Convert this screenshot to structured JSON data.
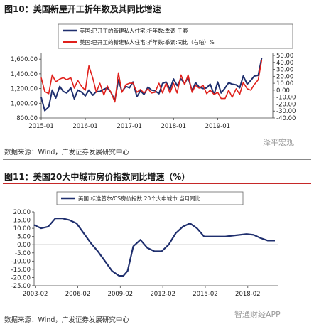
{
  "figures": [
    {
      "title": "图10：美国新屋开工折年数及其同比增速",
      "source": "数据来源：Wind，广发证券发展研究中心",
      "watermark": "泽平宏观"
    },
    {
      "title": "图11：美国20大中城市房价指数同比增速（%）",
      "source": "数据来源：Wind，广发证券发展研究中心",
      "watermark": "智通财经APP"
    }
  ],
  "chart_data": [
    {
      "type": "line",
      "colors": [
        "#1f2f6e",
        "#e0201b"
      ],
      "x_ticks": [
        "2015-01",
        "2016-01",
        "2017-01",
        "2018-01",
        "2019-01"
      ],
      "x_range": [
        2015.0,
        2020.25
      ],
      "y_left": {
        "ticks": [
          "800.00",
          "1,000.00",
          "1,200.00",
          "1,400.00",
          "1,600.00"
        ],
        "range": [
          800,
          1650
        ]
      },
      "y_right": {
        "ticks": [
          "-40.00",
          "-30.00",
          "-20.00",
          "-10.00",
          "0.00",
          "10.00",
          "20.00",
          "30.00",
          "40.00",
          "50.00"
        ],
        "range": [
          -40,
          50
        ]
      },
      "series": [
        {
          "name": "美国:已开工的新建私人住宅:折年数:季调 千套",
          "axis": "left",
          "x": [
            2015.0,
            2015.08,
            2015.17,
            2015.25,
            2015.33,
            2015.42,
            2015.5,
            2015.58,
            2015.67,
            2015.75,
            2015.83,
            2015.92,
            2016.0,
            2016.08,
            2016.17,
            2016.25,
            2016.33,
            2016.42,
            2016.5,
            2016.58,
            2016.67,
            2016.75,
            2016.83,
            2016.92,
            2017.0,
            2017.08,
            2017.17,
            2017.25,
            2017.33,
            2017.42,
            2017.5,
            2017.58,
            2017.67,
            2017.75,
            2017.83,
            2017.92,
            2018.0,
            2018.08,
            2018.17,
            2018.25,
            2018.33,
            2018.42,
            2018.5,
            2018.58,
            2018.67,
            2018.75,
            2018.83,
            2018.92,
            2019.0,
            2019.08,
            2019.17,
            2019.25,
            2019.33,
            2019.42,
            2019.5,
            2019.58,
            2019.67,
            2019.75,
            2019.83,
            2019.92,
            2020.0
          ],
          "values": [
            1080,
            900,
            950,
            1180,
            1070,
            1230,
            1160,
            1140,
            1210,
            1060,
            1180,
            1150,
            1100,
            1180,
            1110,
            1160,
            1160,
            1190,
            1210,
            1150,
            1040,
            1320,
            1160,
            1230,
            1210,
            1290,
            1090,
            1170,
            1120,
            1220,
            1180,
            1170,
            1130,
            1270,
            1290,
            1190,
            1330,
            1240,
            1330,
            1270,
            1350,
            1170,
            1280,
            1220,
            1200,
            1210,
            1260,
            1120,
            1290,
            1140,
            1210,
            1280,
            1260,
            1250,
            1210,
            1370,
            1260,
            1310,
            1370,
            1380,
            1620
          ]
        },
        {
          "name": "美国:已开工的新建私人住宅:折年数:季调:同比（右轴）%",
          "axis": "right",
          "x": [
            2015.0,
            2015.08,
            2015.17,
            2015.25,
            2015.33,
            2015.42,
            2015.5,
            2015.58,
            2015.67,
            2015.75,
            2015.83,
            2015.92,
            2016.0,
            2016.08,
            2016.17,
            2016.25,
            2016.33,
            2016.42,
            2016.5,
            2016.58,
            2016.67,
            2016.75,
            2016.83,
            2016.92,
            2017.0,
            2017.08,
            2017.17,
            2017.25,
            2017.33,
            2017.42,
            2017.5,
            2017.58,
            2017.67,
            2017.75,
            2017.83,
            2017.92,
            2018.0,
            2018.08,
            2018.17,
            2018.25,
            2018.33,
            2018.42,
            2018.5,
            2018.58,
            2018.67,
            2018.75,
            2018.83,
            2018.92,
            2019.0,
            2019.08,
            2019.17,
            2019.25,
            2019.33,
            2019.42,
            2019.5,
            2019.58,
            2019.67,
            2019.75,
            2019.83,
            2019.92,
            2020.0
          ],
          "values": [
            18,
            -2,
            -5,
            22,
            12,
            16,
            18,
            15,
            18,
            3,
            14,
            5,
            0,
            35,
            17,
            -3,
            10,
            -7,
            6,
            -3,
            -17,
            25,
            -3,
            8,
            10,
            10,
            -3,
            1,
            -4,
            2,
            -4,
            -3,
            10,
            -4,
            10,
            -4,
            10,
            -4,
            22,
            8,
            22,
            -3,
            7,
            3,
            7,
            -5,
            0,
            -6,
            -3,
            -12,
            -12,
            0,
            -10,
            2,
            -6,
            11,
            2,
            0,
            8,
            15,
            44
          ]
        }
      ]
    },
    {
      "type": "line",
      "colors": [
        "#1f2f6e"
      ],
      "x_ticks": [
        "2003-02",
        "2006-02",
        "2009-02",
        "2012-02",
        "2015-02",
        "2018-02"
      ],
      "x_range": [
        2003.0,
        2020.25
      ],
      "y": {
        "ticks": [
          "-25.00",
          "-20.00",
          "-15.00",
          "-10.00",
          "-5.00",
          "0.00",
          "5.00",
          "10.00",
          "15.00",
          "20.00"
        ],
        "range": [
          -25,
          20
        ]
      },
      "series": [
        {
          "name": "美国:标准普尔/CS房价指数:20个大中城市:当月同比",
          "x": [
            2003.0,
            2003.5,
            2004.0,
            2004.5,
            2005.0,
            2005.5,
            2006.0,
            2006.5,
            2007.0,
            2007.5,
            2008.0,
            2008.5,
            2009.0,
            2009.3,
            2009.6,
            2010.0,
            2010.5,
            2011.0,
            2011.5,
            2012.0,
            2012.5,
            2013.0,
            2013.5,
            2014.0,
            2014.5,
            2015.0,
            2015.5,
            2016.0,
            2016.5,
            2017.0,
            2017.5,
            2018.0,
            2018.5,
            2019.0,
            2019.5,
            2020.0
          ],
          "values": [
            12,
            10,
            11,
            16,
            16,
            15,
            13,
            7,
            1,
            -4,
            -10,
            -16,
            -19,
            -19,
            -16,
            -1,
            3,
            -2,
            -4,
            -4,
            0,
            7,
            11,
            13,
            10,
            5,
            5,
            5,
            5,
            5.5,
            6,
            6.5,
            6,
            4,
            2.5,
            2.5
          ]
        }
      ]
    }
  ]
}
